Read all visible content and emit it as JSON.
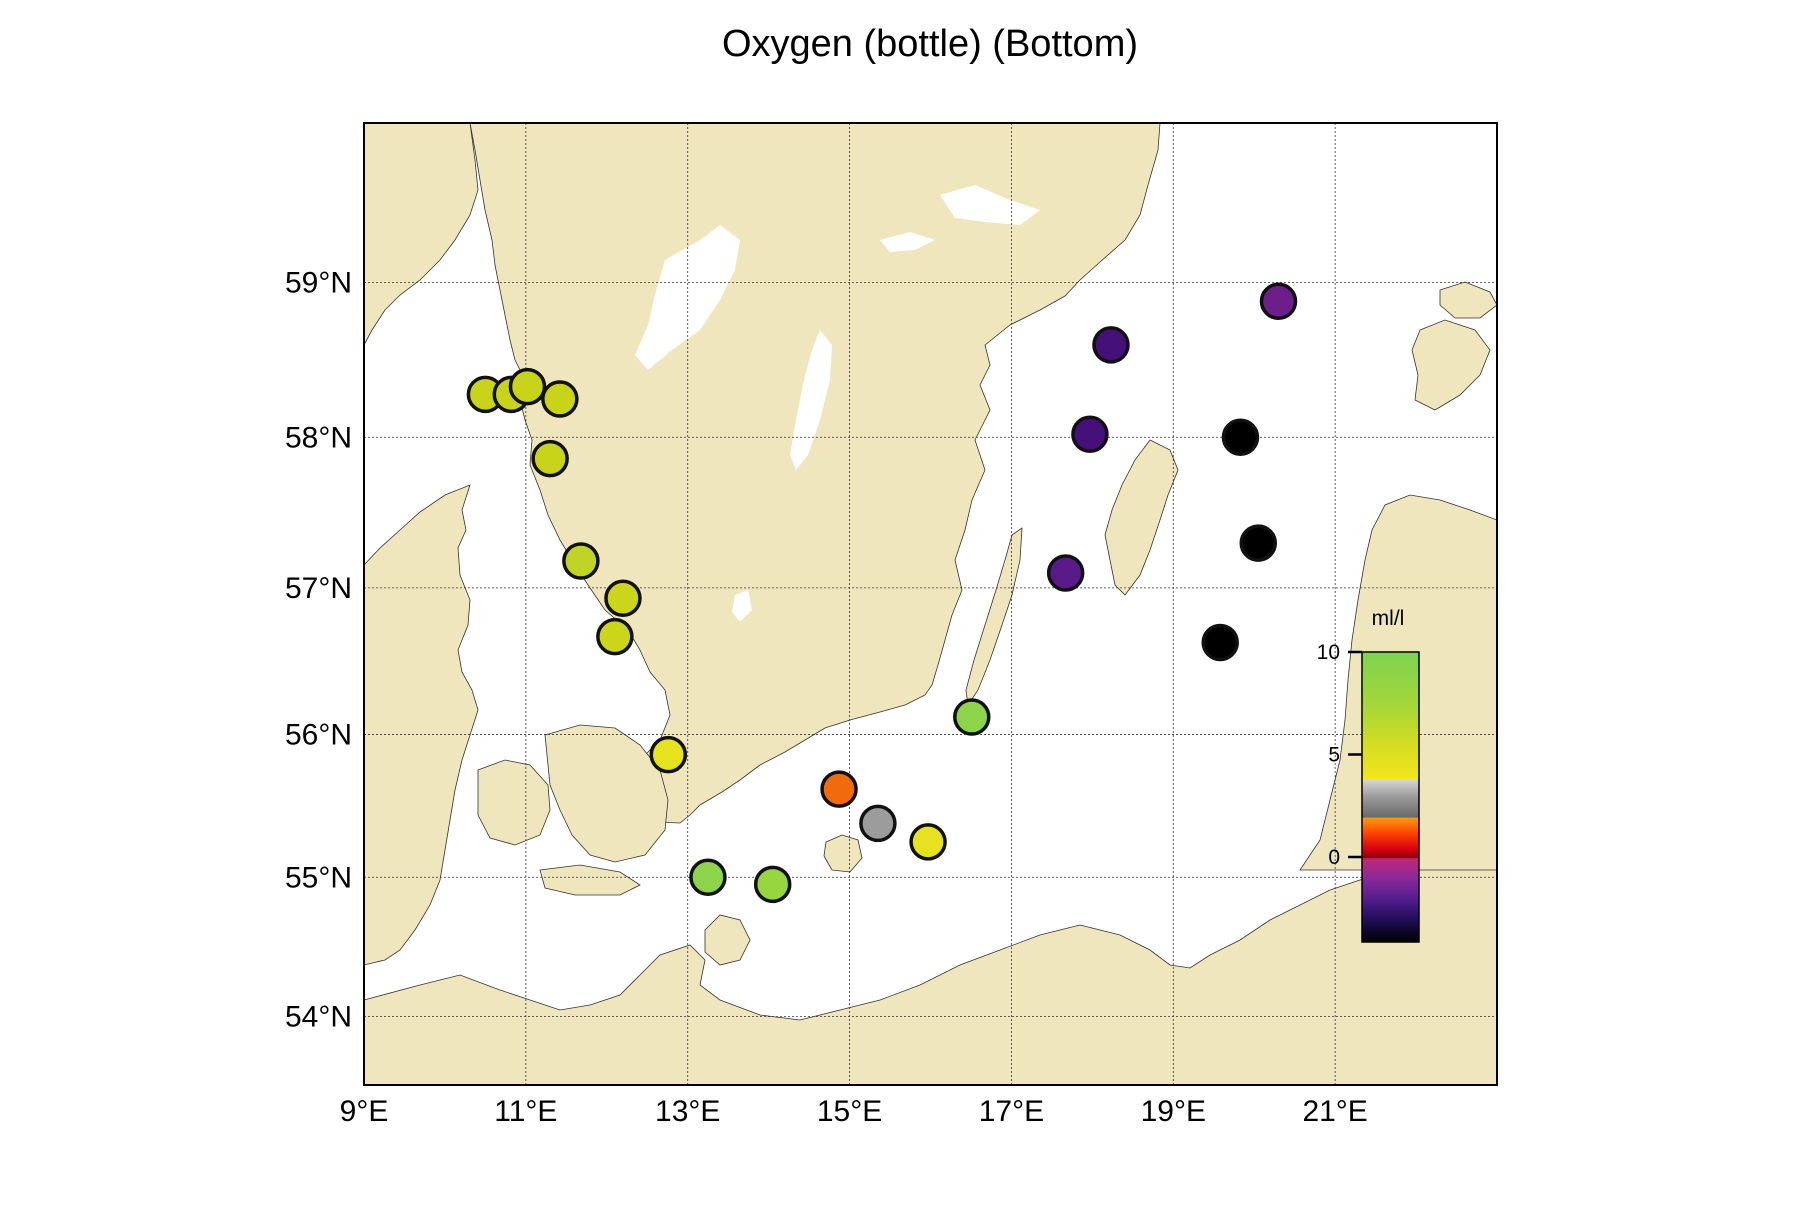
{
  "map": {
    "title": "Oxygen (bottle) (Bottom)",
    "lon_range": [
      9,
      23
    ],
    "lat_range": [
      53.5,
      60
    ],
    "lon_ticks": [
      {
        "value": 9,
        "label": "9°E"
      },
      {
        "value": 11,
        "label": "11°E"
      },
      {
        "value": 13,
        "label": "13°E"
      },
      {
        "value": 15,
        "label": "15°E"
      },
      {
        "value": 17,
        "label": "17°E"
      },
      {
        "value": 19,
        "label": "19°E"
      },
      {
        "value": 21,
        "label": "21°E"
      }
    ],
    "lat_ticks": [
      {
        "value": 54,
        "label": "54°N"
      },
      {
        "value": 55,
        "label": "55°N"
      },
      {
        "value": 56,
        "label": "56°N"
      },
      {
        "value": 57,
        "label": "57°N"
      },
      {
        "value": 58,
        "label": "58°N"
      },
      {
        "value": 59,
        "label": "59°N"
      }
    ],
    "colors": {
      "land": "#f0e6bd",
      "sea": "#ffffff",
      "marker_outline": "#111111"
    }
  },
  "colorbar": {
    "unit": "ml/l",
    "ticks": [
      {
        "value": 10,
        "label": "10"
      },
      {
        "value": 5,
        "label": "5"
      },
      {
        "value": 0,
        "label": "0"
      }
    ]
  },
  "stations": [
    {
      "lon": 10.5,
      "lat": 58.28,
      "value": 6.8,
      "color": "#c8d41a"
    },
    {
      "lon": 10.82,
      "lat": 58.28,
      "value": 6.9,
      "color": "#c8d41a"
    },
    {
      "lon": 11.02,
      "lat": 58.33,
      "value": 6.9,
      "color": "#c8d41a"
    },
    {
      "lon": 11.42,
      "lat": 58.25,
      "value": 6.8,
      "color": "#c8d41a"
    },
    {
      "lon": 11.3,
      "lat": 57.86,
      "value": 6.9,
      "color": "#c8d41a"
    },
    {
      "lon": 11.68,
      "lat": 57.18,
      "value": 7.0,
      "color": "#c0d428"
    },
    {
      "lon": 12.2,
      "lat": 56.93,
      "value": 6.7,
      "color": "#cbd61a"
    },
    {
      "lon": 12.1,
      "lat": 56.67,
      "value": 6.7,
      "color": "#cbd61a"
    },
    {
      "lon": 12.76,
      "lat": 55.86,
      "value": 5.4,
      "color": "#e6e21e"
    },
    {
      "lon": 13.25,
      "lat": 55.0,
      "value": 9.0,
      "color": "#8ed44a"
    },
    {
      "lon": 14.05,
      "lat": 54.95,
      "value": 8.8,
      "color": "#98d640"
    },
    {
      "lon": 14.87,
      "lat": 55.62,
      "value": 1.8,
      "color": "#f26a0e"
    },
    {
      "lon": 15.35,
      "lat": 55.38,
      "value": 3.4,
      "color": "#9c9c9c"
    },
    {
      "lon": 15.97,
      "lat": 55.25,
      "value": 5.3,
      "color": "#e6e21e"
    },
    {
      "lon": 16.51,
      "lat": 56.12,
      "value": 9.0,
      "color": "#8ed44a"
    },
    {
      "lon": 17.67,
      "lat": 57.1,
      "value": -2.0,
      "color": "#5a1a8a"
    },
    {
      "lon": 17.97,
      "lat": 58.02,
      "value": -2.6,
      "color": "#45107a"
    },
    {
      "lon": 18.23,
      "lat": 58.6,
      "value": -2.6,
      "color": "#45107a"
    },
    {
      "lon": 20.3,
      "lat": 58.88,
      "value": -1.8,
      "color": "#6e1e8a"
    },
    {
      "lon": 19.83,
      "lat": 58.0,
      "value": -4.0,
      "color": "#000000"
    },
    {
      "lon": 20.05,
      "lat": 57.3,
      "value": -4.0,
      "color": "#000000"
    },
    {
      "lon": 19.58,
      "lat": 56.63,
      "value": -4.0,
      "color": "#000000"
    }
  ]
}
